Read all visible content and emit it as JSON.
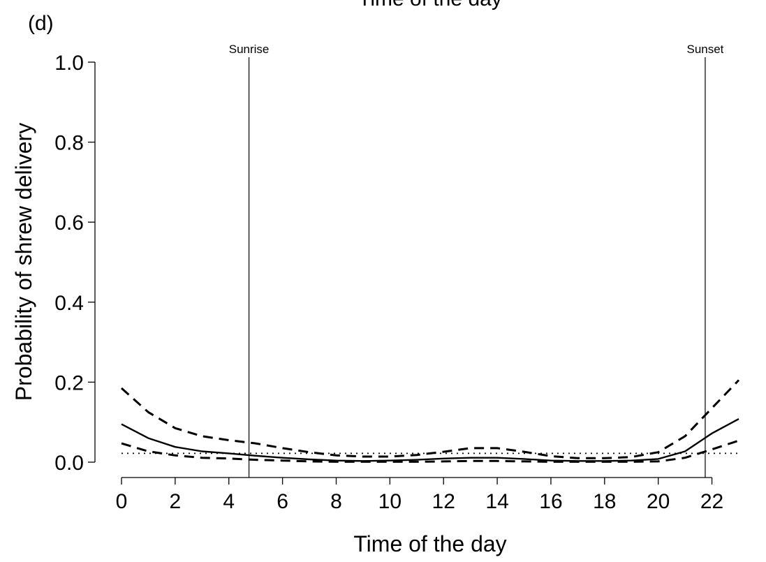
{
  "chart_data": {
    "type": "line",
    "panel_label": "(d)",
    "top_title_clipped": "Time of the day",
    "xlabel": "Time of the day",
    "ylabel": "Probability of shrew delivery",
    "xlim": [
      0,
      23
    ],
    "ylim": [
      0,
      1
    ],
    "xticks": [
      0,
      2,
      4,
      6,
      8,
      10,
      12,
      14,
      16,
      18,
      20,
      22
    ],
    "yticks": [
      0.0,
      0.2,
      0.4,
      0.6,
      0.8,
      1.0
    ],
    "ytick_labels": [
      "0.0",
      "0.2",
      "0.4",
      "0.6",
      "0.8",
      "1.0"
    ],
    "x": [
      0,
      1,
      2,
      3,
      4,
      5,
      6,
      7,
      8,
      9,
      10,
      11,
      12,
      13,
      14,
      15,
      16,
      17,
      18,
      19,
      20,
      21,
      22,
      23
    ],
    "series": [
      {
        "style": "dashed",
        "values": [
          0.185,
          0.125,
          0.085,
          0.065,
          0.055,
          0.047,
          0.035,
          0.025,
          0.017,
          0.014,
          0.014,
          0.018,
          0.026,
          0.035,
          0.035,
          0.026,
          0.015,
          0.01,
          0.01,
          0.013,
          0.025,
          0.065,
          0.135,
          0.205
        ]
      },
      {
        "style": "solid",
        "values": [
          0.095,
          0.06,
          0.038,
          0.027,
          0.022,
          0.016,
          0.011,
          0.007,
          0.004,
          0.003,
          0.004,
          0.006,
          0.009,
          0.011,
          0.011,
          0.008,
          0.004,
          0.003,
          0.003,
          0.004,
          0.008,
          0.027,
          0.072,
          0.108
        ]
      },
      {
        "style": "dashed",
        "values": [
          0.047,
          0.027,
          0.017,
          0.011,
          0.009,
          0.006,
          0.004,
          0.002,
          0.001,
          0.001,
          0.001,
          0.001,
          0.002,
          0.003,
          0.003,
          0.002,
          0.001,
          0.001,
          0.001,
          0.001,
          0.002,
          0.011,
          0.032,
          0.054
        ]
      },
      {
        "style": "dotted",
        "values": [
          0.022,
          0.022,
          0.022,
          0.022,
          0.022,
          0.022,
          0.022,
          0.022,
          0.022,
          0.022,
          0.022,
          0.022,
          0.022,
          0.022,
          0.022,
          0.022,
          0.022,
          0.022,
          0.022,
          0.022,
          0.022,
          0.022,
          0.022,
          0.022
        ]
      }
    ],
    "vlines": [
      {
        "x": 4.75,
        "label": "Sunrise"
      },
      {
        "x": 21.75,
        "label": "Sunset"
      }
    ],
    "grid": false,
    "legend": "none"
  }
}
